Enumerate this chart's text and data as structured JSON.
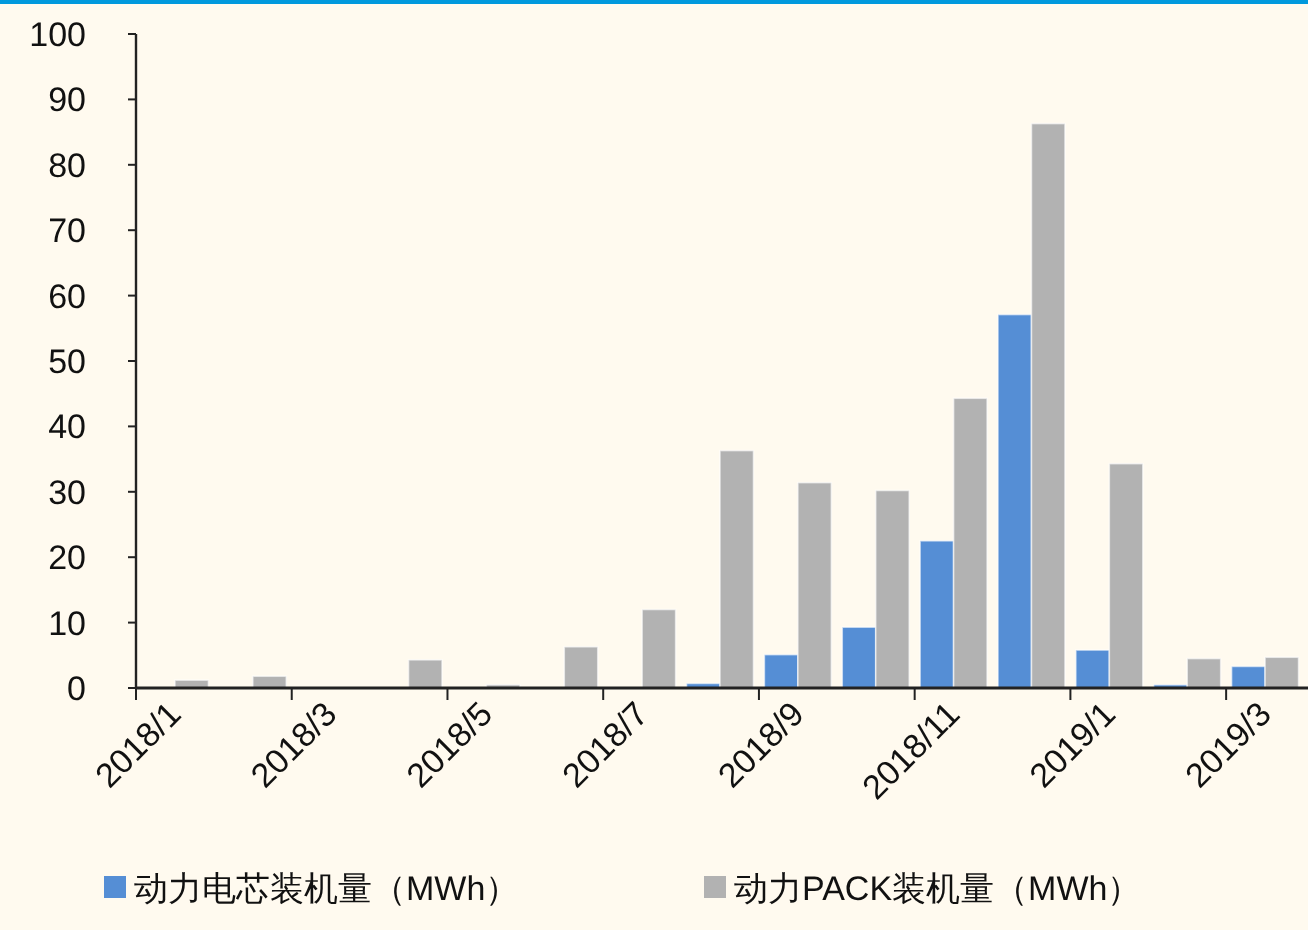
{
  "chart_data": {
    "type": "bar",
    "categories": [
      "2018/1",
      null,
      "2018/3",
      null,
      "2018/5",
      null,
      "2018/7",
      null,
      "2018/9",
      null,
      "2018/11",
      null,
      "2019/1",
      null,
      "2019/3"
    ],
    "series": [
      {
        "name": "动力电芯装机量（MWh）",
        "color": "#558ed5",
        "values": [
          null,
          null,
          null,
          null,
          null,
          null,
          null,
          0.7,
          5.1,
          9.3,
          22.5,
          57.1,
          5.8,
          0.5,
          3.3
        ]
      },
      {
        "name": "动力PACK装机量（MWh）",
        "color": "#b2b2b2",
        "values": [
          1.2,
          1.8,
          null,
          4.3,
          0.5,
          6.3,
          12,
          36.3,
          31.4,
          30.2,
          44.3,
          86.3,
          34.3,
          4.5,
          4.7
        ]
      }
    ],
    "ylim": [
      0,
      100
    ],
    "yticks": [
      0,
      10,
      20,
      30,
      40,
      50,
      60,
      70,
      80,
      90,
      100
    ],
    "legend": "bottom"
  }
}
